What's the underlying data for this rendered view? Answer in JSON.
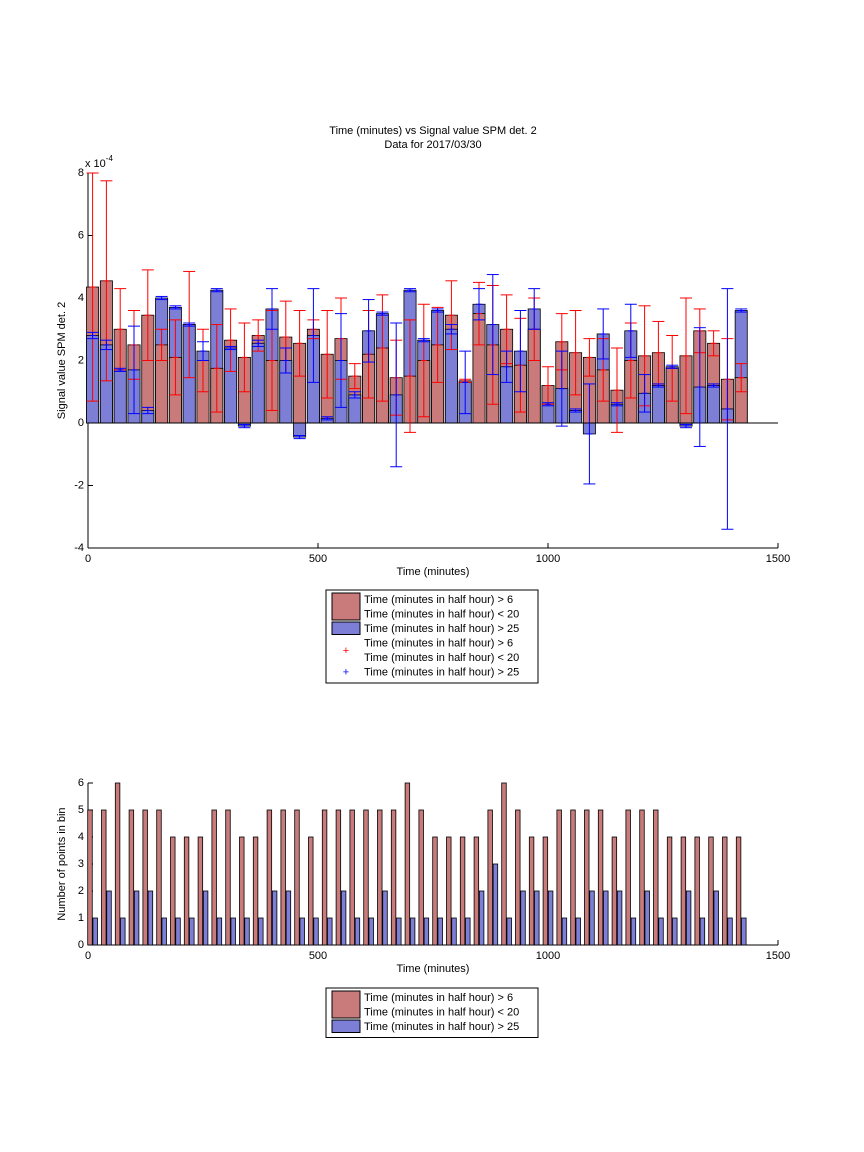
{
  "chart_data": [
    {
      "type": "errorbar",
      "title": "Time (minutes) vs Signal value SPM det. 2",
      "subtitle": "Data for 2017/03/30",
      "x_label": "Time (minutes)",
      "y_label": "Signal value SPM det. 2",
      "y_multiplier": "x 10",
      "y_multiplier_exponent": "-4",
      "xlim": [
        0,
        1500
      ],
      "xticks": [
        0,
        500,
        1000,
        1500
      ],
      "ylim": [
        -4,
        8
      ],
      "yticks": [
        -4,
        -2,
        0,
        2,
        4,
        6,
        8
      ],
      "x": [
        10,
        40,
        70,
        100,
        130,
        160,
        190,
        220,
        250,
        280,
        310,
        340,
        370,
        400,
        430,
        460,
        490,
        520,
        550,
        580,
        610,
        640,
        670,
        700,
        730,
        760,
        790,
        820,
        850,
        880,
        910,
        940,
        970,
        1000,
        1030,
        1060,
        1090,
        1120,
        1150,
        1180,
        1210,
        1240,
        1270,
        1300,
        1330,
        1360,
        1390,
        1420
      ],
      "legend": "below",
      "series": [
        {
          "name": [
            "Time (minutes in half hour) > 6",
            "Time (minutes in half hour) < 20"
          ],
          "color": "#c97b7b",
          "error_color": "#ff0000",
          "values": [
            4.35,
            4.55,
            3.0,
            2.5,
            3.45,
            2.5,
            2.1,
            3.15,
            2.0,
            1.75,
            2.65,
            2.1,
            2.8,
            2.0,
            2.75,
            2.55,
            3.0,
            2.2,
            2.7,
            1.5,
            2.2,
            2.4,
            1.45,
            1.5,
            2.0,
            2.5,
            3.45,
            1.35,
            3.5,
            2.5,
            3.0,
            1.85,
            3.0,
            1.2,
            2.6,
            2.25,
            2.1,
            1.7,
            1.05,
            2.0,
            2.15,
            2.25,
            1.75,
            2.15,
            2.95,
            2.55,
            1.4,
            1.45
          ],
          "errors": [
            3.65,
            3.2,
            1.3,
            1.1,
            1.45,
            0.5,
            1.2,
            1.7,
            1.0,
            1.4,
            1.0,
            1.1,
            0.5,
            1.6,
            1.15,
            1.05,
            0.3,
            1.4,
            1.3,
            0.4,
            1.4,
            1.7,
            1.2,
            1.8,
            1.8,
            1.2,
            1.1,
            0.05,
            1.0,
            1.9,
            1.1,
            1.5,
            1.0,
            0.6,
            0.9,
            1.35,
            0.6,
            1.0,
            1.35,
            1.2,
            1.6,
            1.0,
            1.05,
            1.85,
            0.7,
            0.4,
            1.3,
            0.45
          ]
        },
        {
          "name": [
            "Time (minutes in half hour) > 25"
          ],
          "color": "#7d7fd6",
          "error_color": "#0000ff",
          "values": [
            2.8,
            2.5,
            1.7,
            1.7,
            0.4,
            4.0,
            3.7,
            3.15,
            2.3,
            4.25,
            2.4,
            -0.1,
            2.55,
            3.65,
            2.0,
            -0.45,
            2.8,
            0.15,
            2.0,
            0.9,
            2.95,
            3.5,
            0.9,
            4.25,
            2.65,
            3.6,
            3.0,
            1.3,
            3.8,
            3.15,
            1.8,
            2.3,
            3.65,
            0.6,
            1.1,
            0.4,
            -0.35,
            2.85,
            0.6,
            2.95,
            0.95,
            1.2,
            1.8,
            -0.1,
            1.15,
            1.2,
            0.45,
            3.6
          ],
          "errors": [
            0.1,
            0.15,
            0.05,
            1.4,
            0.1,
            0.05,
            0.05,
            0.05,
            0.3,
            0.05,
            0.05,
            0.05,
            0.1,
            0.65,
            0.4,
            0.05,
            1.5,
            0.05,
            1.5,
            0.1,
            1.0,
            0.05,
            2.3,
            0.05,
            0.05,
            0.05,
            0.15,
            1.0,
            0.5,
            1.6,
            0.5,
            1.3,
            0.65,
            0.05,
            1.2,
            0.05,
            1.6,
            0.8,
            0.05,
            0.85,
            0.6,
            0.05,
            0.05,
            0.05,
            1.9,
            0.05,
            3.85,
            0.05
          ]
        }
      ]
    },
    {
      "type": "bar",
      "x_label": "Time (minutes)",
      "y_label": "Number of points in bin",
      "xlim": [
        0,
        1500
      ],
      "xticks": [
        0,
        500,
        1000,
        1500
      ],
      "ylim": [
        0,
        6
      ],
      "yticks": [
        0,
        1,
        2,
        3,
        4,
        5,
        6
      ],
      "x": [
        10,
        40,
        70,
        100,
        130,
        160,
        190,
        220,
        250,
        280,
        310,
        340,
        370,
        400,
        430,
        460,
        490,
        520,
        550,
        580,
        610,
        640,
        670,
        700,
        730,
        760,
        790,
        820,
        850,
        880,
        910,
        940,
        970,
        1000,
        1030,
        1060,
        1090,
        1120,
        1150,
        1180,
        1210,
        1240,
        1270,
        1300,
        1330,
        1360,
        1390,
        1420
      ],
      "legend": "below",
      "series": [
        {
          "name": [
            "Time (minutes in half hour) > 6",
            "Time (minutes in half hour) < 20"
          ],
          "color": "#c97b7b",
          "values": [
            5,
            5,
            6,
            5,
            5,
            5,
            4,
            4,
            4,
            5,
            5,
            4,
            4,
            5,
            5,
            5,
            4,
            5,
            5,
            5,
            5,
            5,
            5,
            6,
            5,
            4,
            4,
            4,
            4,
            5,
            6,
            5,
            4,
            4,
            5,
            5,
            5,
            5,
            4,
            5,
            5,
            5,
            4,
            4,
            4,
            4,
            4,
            4
          ]
        },
        {
          "name": [
            "Time (minutes in half hour) > 25"
          ],
          "color": "#7d7fd6",
          "values": [
            1,
            2,
            1,
            2,
            2,
            1,
            1,
            1,
            2,
            1,
            1,
            1,
            1,
            2,
            2,
            1,
            1,
            1,
            2,
            1,
            1,
            2,
            1,
            1,
            1,
            1,
            1,
            1,
            2,
            3,
            1,
            2,
            2,
            2,
            1,
            1,
            2,
            2,
            2,
            1,
            2,
            1,
            1,
            2,
            1,
            2,
            1,
            1
          ]
        }
      ]
    }
  ]
}
